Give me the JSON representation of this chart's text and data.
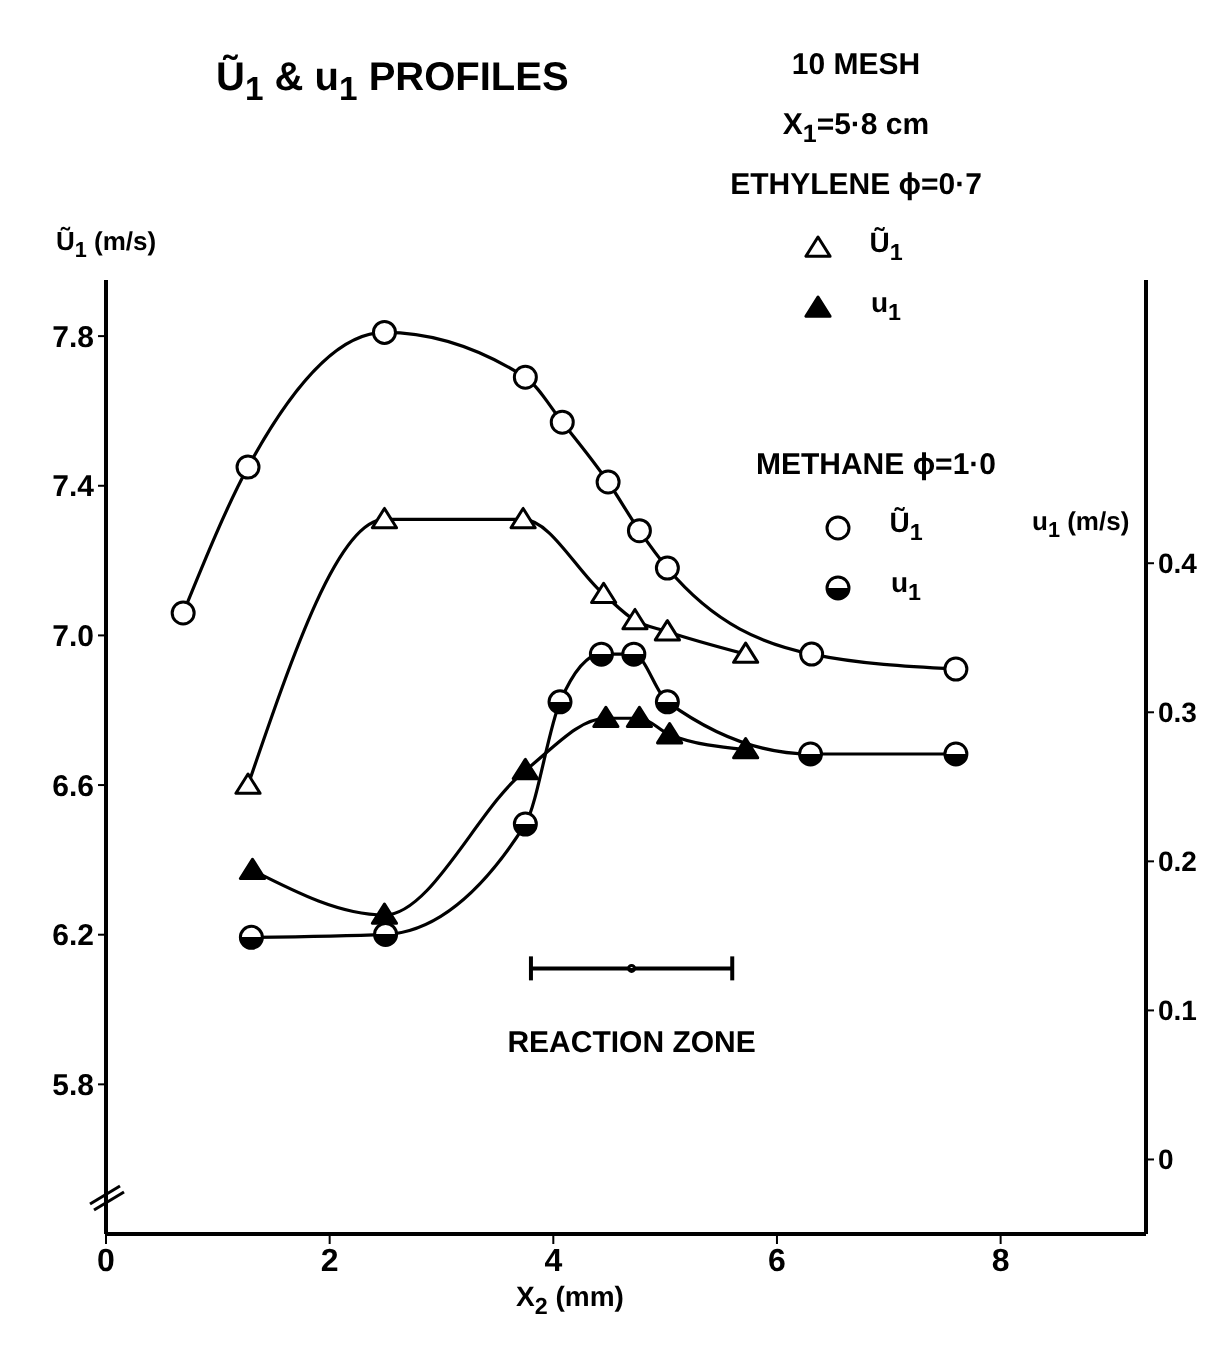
{
  "chart_data": {
    "type": "line",
    "title": "Ũ$_{1}$ & u$_{1}$ PROFILES",
    "xlabel": "X$_{2}$ (mm)",
    "ylabel": "Ũ$_{1}$ (m/s)",
    "y2label": "u$_{1}$ (m/s)",
    "annotations": [
      "10 MESH",
      "X$_{1}$=5·8 cm",
      "ETHYLENE ϕ=0·7",
      "METHANE ϕ=1·0",
      {
        "text": "REACTION ZONE",
        "x": 4.7,
        "y": 6.11
      }
    ],
    "xlim": [
      0,
      9.3
    ],
    "xticks": [
      0,
      2,
      4,
      6,
      8
    ],
    "ylim": [
      5.4,
      7.95
    ],
    "yticks": [
      5.8,
      6.2,
      6.6,
      {
        "value": 7.0,
        "label": "7.0"
      },
      7.4,
      7.8
    ],
    "y2lim": [
      -0.05,
      0.59
    ],
    "y2ticks": [
      0,
      0.1,
      0.2,
      0.3,
      0.4
    ],
    "legend": "top right",
    "line_style": "solid",
    "series": [
      {
        "type": "scatter",
        "marker": "circle",
        "color": "#000000",
        "x": [
          4.7
        ],
        "values": [
          6.11
        ],
        "xerrors": [
          0.9
        ]
      },
      {
        "name": "Ũ$_{1}$",
        "color": "#000000",
        "marker": "triangle",
        "x": [
          1.27,
          2.49,
          3.73,
          4.45,
          4.73,
          5.02,
          5.72
        ],
        "values": [
          6.6,
          7.31,
          7.31,
          7.11,
          7.04,
          7.01,
          6.95
        ]
      },
      {
        "name": "u$_{1}$",
        "color": "#000000",
        "marker": "triangle",
        "axis": "y2",
        "x": [
          1.31,
          2.49,
          3.75,
          4.47,
          4.77,
          5.04,
          5.72
        ],
        "values": [
          0.194,
          0.164,
          0.261,
          0.296,
          0.296,
          0.285,
          0.275
        ]
      },
      {
        "name": "Ũ$_{1}$",
        "color": "#000000",
        "marker": "circle",
        "x": [
          0.69,
          1.27,
          2.49,
          3.75,
          4.08,
          4.49,
          4.77,
          5.02,
          6.31,
          7.6
        ],
        "values": [
          7.06,
          7.45,
          7.81,
          7.69,
          7.57,
          7.41,
          7.28,
          7.18,
          6.95,
          6.91
        ]
      },
      {
        "name": "u$_{1}$",
        "color": "#000000",
        "marker": "circle",
        "axis": "y2",
        "x": [
          1.3,
          2.5,
          3.75,
          4.06,
          4.43,
          4.72,
          5.02,
          6.3,
          7.6
        ],
        "values": [
          0.149,
          0.151,
          0.225,
          0.307,
          0.339,
          0.339,
          0.307,
          0.272,
          0.272
        ]
      }
    ]
  }
}
